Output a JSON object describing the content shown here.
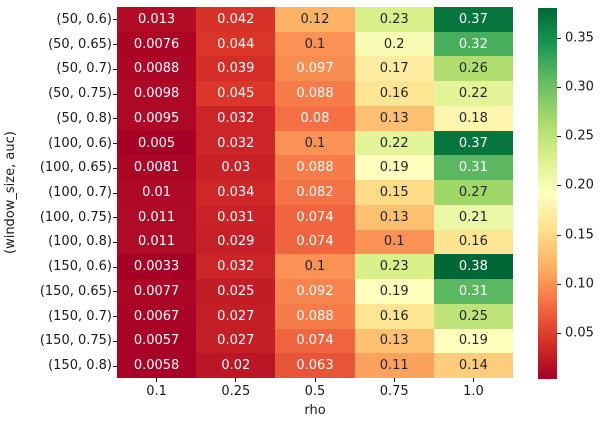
{
  "chart_data": {
    "type": "heatmap",
    "title": "",
    "xlabel": "rho",
    "ylabel": "(window_size, auc)",
    "x_ticklabels": [
      "0.1",
      "0.25",
      "0.5",
      "0.75",
      "1.0"
    ],
    "y_ticklabels": [
      "(50, 0.6)",
      "(50, 0.65)",
      "(50, 0.7)",
      "(50, 0.75)",
      "(50, 0.8)",
      "(100, 0.6)",
      "(100, 0.65)",
      "(100, 0.7)",
      "(100, 0.75)",
      "(100, 0.8)",
      "(150, 0.6)",
      "(150, 0.65)",
      "(150, 0.7)",
      "(150, 0.75)",
      "(150, 0.8)"
    ],
    "values": [
      [
        0.013,
        0.042,
        0.12,
        0.23,
        0.37
      ],
      [
        0.0076,
        0.044,
        0.1,
        0.2,
        0.32
      ],
      [
        0.0088,
        0.039,
        0.097,
        0.17,
        0.26
      ],
      [
        0.0098,
        0.045,
        0.088,
        0.16,
        0.22
      ],
      [
        0.0095,
        0.032,
        0.08,
        0.13,
        0.18
      ],
      [
        0.005,
        0.032,
        0.1,
        0.22,
        0.37
      ],
      [
        0.0081,
        0.03,
        0.088,
        0.19,
        0.31
      ],
      [
        0.01,
        0.034,
        0.082,
        0.15,
        0.27
      ],
      [
        0.011,
        0.031,
        0.074,
        0.13,
        0.21
      ],
      [
        0.011,
        0.029,
        0.074,
        0.1,
        0.16
      ],
      [
        0.0033,
        0.032,
        0.1,
        0.23,
        0.38
      ],
      [
        0.0077,
        0.025,
        0.092,
        0.19,
        0.31
      ],
      [
        0.0067,
        0.027,
        0.088,
        0.16,
        0.25
      ],
      [
        0.0057,
        0.027,
        0.074,
        0.13,
        0.19
      ],
      [
        0.0058,
        0.02,
        0.063,
        0.11,
        0.14
      ]
    ],
    "vmin": 0.0033,
    "vmax": 0.38,
    "colormap": "RdYlGn",
    "colormap_anchors": [
      "#a50026",
      "#d73027",
      "#f46d43",
      "#fdae61",
      "#fee08b",
      "#ffffbf",
      "#d9ef8b",
      "#a6d96a",
      "#66bd63",
      "#1a9850",
      "#006837"
    ],
    "annot_colors": {
      "dark": "#262626",
      "light": "#ffffff"
    },
    "colorbar_tick_values": [
      0.05,
      0.1,
      0.15,
      0.2,
      0.25,
      0.3,
      0.35
    ],
    "colorbar_ticklabels": [
      "0.05",
      "0.10",
      "0.15",
      "0.20",
      "0.25",
      "0.30",
      "0.35"
    ],
    "grid": false,
    "legend_position": "colorbar-right"
  }
}
